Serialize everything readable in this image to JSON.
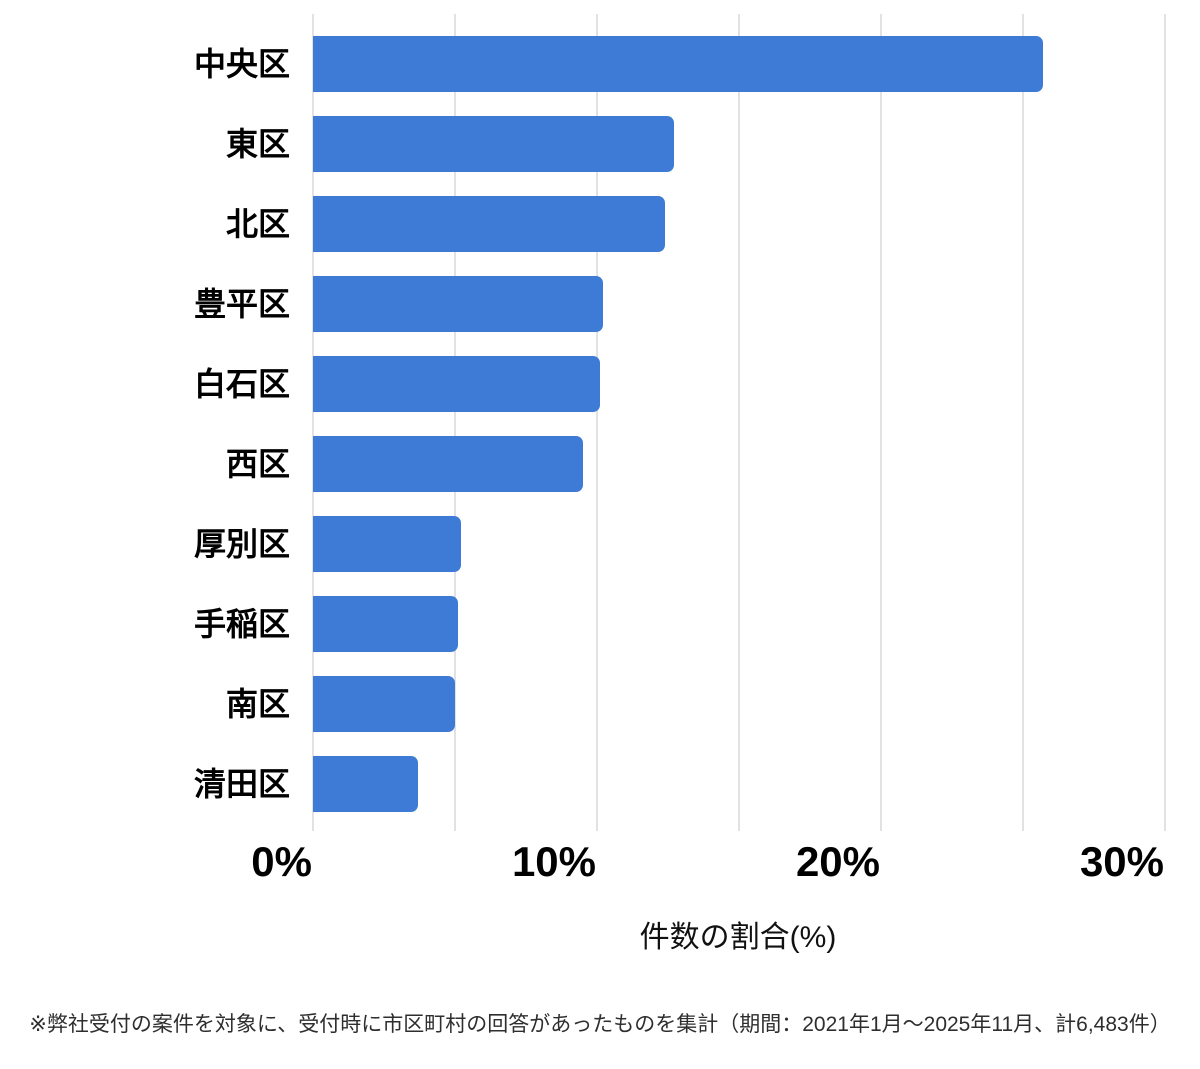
{
  "chart_data": {
    "type": "bar",
    "orientation": "horizontal",
    "title": "",
    "xlabel": "件数の割合(%)",
    "ylabel": "",
    "categories": [
      "中央区",
      "東区",
      "北区",
      "豊平区",
      "白石区",
      "西区",
      "厚別区",
      "手稲区",
      "南区",
      "清田区"
    ],
    "values": [
      25.7,
      12.7,
      12.4,
      10.2,
      10.1,
      9.5,
      5.2,
      5.1,
      5.0,
      3.7
    ],
    "unit": "%",
    "xlim": [
      0,
      30
    ],
    "x_ticks": [
      "0%",
      "10%",
      "20%",
      "30%"
    ],
    "x_tick_values": [
      0,
      10,
      20,
      30
    ],
    "gridline_interval": 5,
    "grid": true,
    "legend": "none",
    "bar_color": "#3E7BD6",
    "gridline_color": "#E2E2E2",
    "label_color": "#000000"
  },
  "footnote": "※弊社受付の案件を対象に、受付時に市区町村の回答があったものを集計（期間：2021年1月～2025年11月、計6,483件）"
}
